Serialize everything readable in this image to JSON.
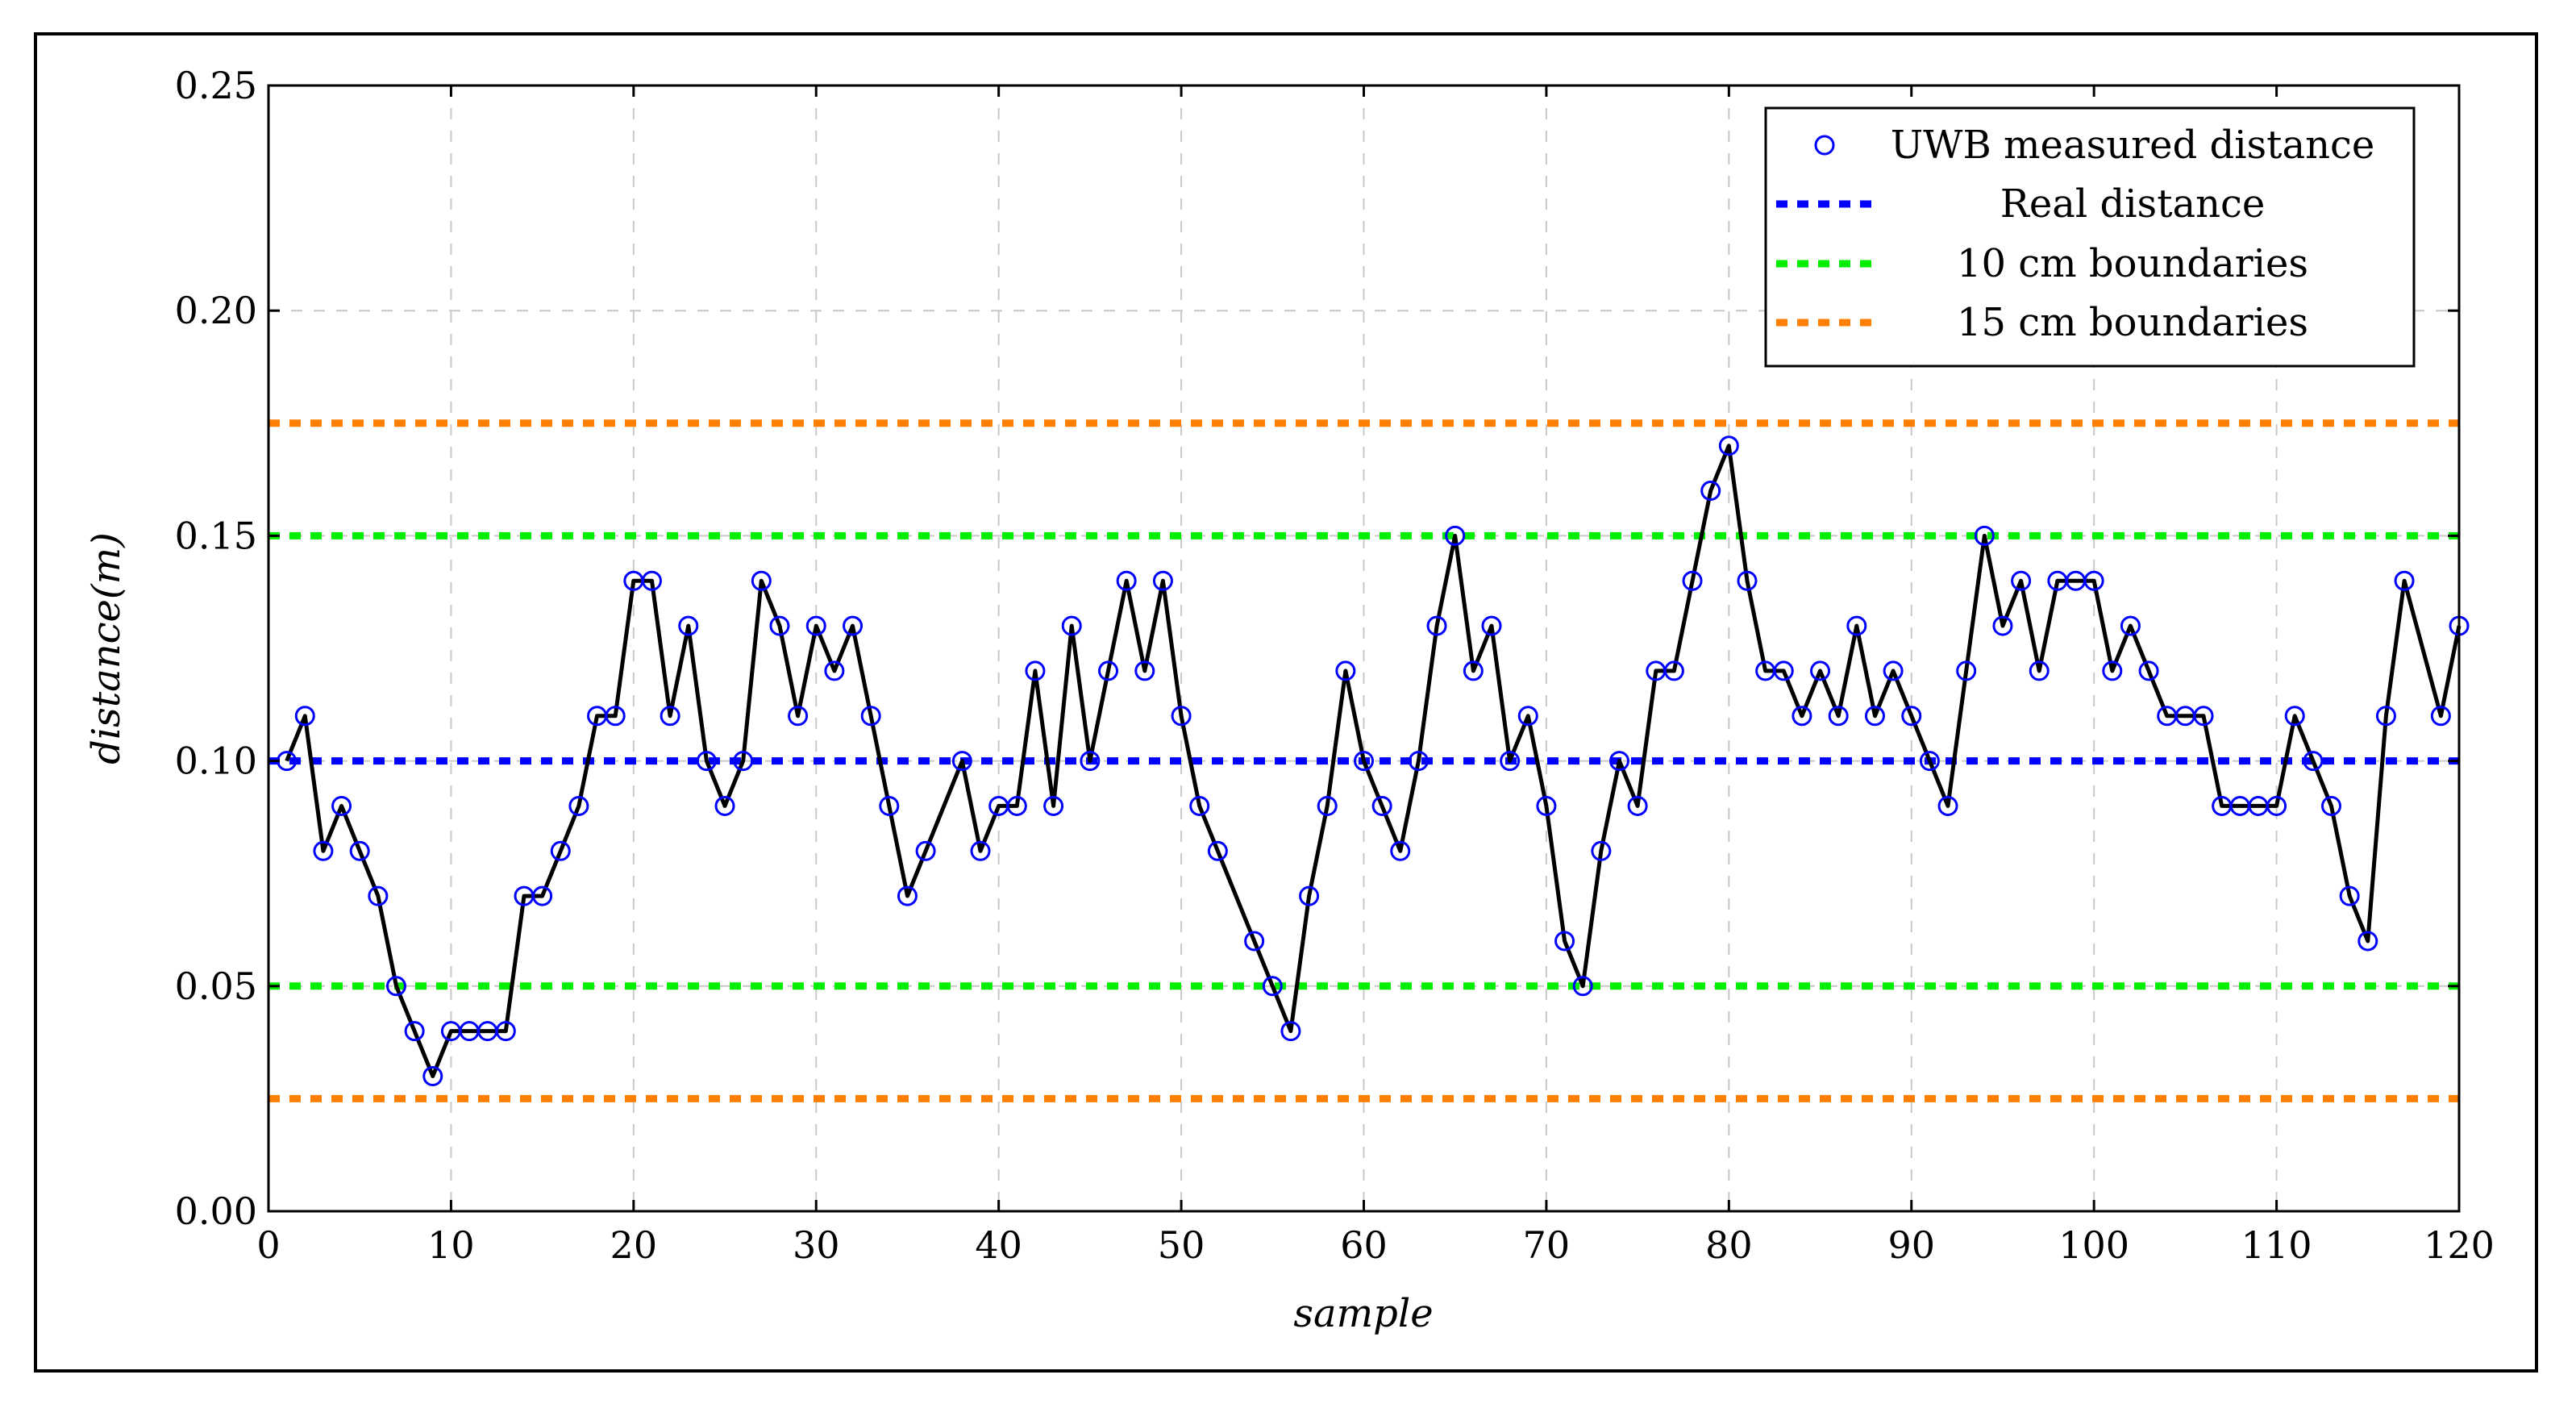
{
  "chart_data": {
    "type": "line",
    "xlabel": "sample",
    "ylabel": "distance(m)",
    "xlim": [
      0,
      120
    ],
    "ylim": [
      0,
      0.25
    ],
    "grid": true,
    "legend_position": "top-right",
    "x_ticks": [
      "0",
      "10",
      "20",
      "30",
      "40",
      "50",
      "60",
      "70",
      "80",
      "90",
      "100",
      "110",
      "120"
    ],
    "y_ticks": [
      "0.00",
      "0.05",
      "0.10",
      "0.15",
      "0.20",
      "0.25"
    ],
    "series": [
      {
        "name": "UWB measured distance",
        "color": "#0000ff",
        "line_color": "#000000",
        "marker": "circle",
        "x": [
          1,
          2,
          3,
          4,
          5,
          6,
          7,
          8,
          9,
          10,
          11,
          12,
          13,
          14,
          15,
          16,
          17,
          18,
          19,
          20,
          21,
          22,
          23,
          24,
          25,
          26,
          27,
          28,
          29,
          30,
          31,
          32,
          33,
          34,
          35,
          36,
          38,
          39,
          40,
          41,
          42,
          43,
          44,
          45,
          46,
          47,
          48,
          49,
          50,
          51,
          52,
          54,
          55,
          56,
          57,
          58,
          59,
          60,
          61,
          62,
          63,
          64,
          65,
          66,
          67,
          68,
          69,
          70,
          71,
          72,
          73,
          74,
          75,
          76,
          77,
          78,
          79,
          80,
          81,
          82,
          83,
          84,
          85,
          86,
          87,
          88,
          89,
          90,
          91,
          92,
          93,
          94,
          95,
          96,
          97,
          98,
          99,
          100,
          101,
          102,
          103,
          104,
          105,
          106,
          107,
          108,
          109,
          110,
          111,
          112,
          113,
          114,
          115,
          116,
          117,
          119,
          120
        ],
        "y": [
          0.1,
          0.11,
          0.08,
          0.09,
          0.08,
          0.07,
          0.05,
          0.04,
          0.03,
          0.04,
          0.04,
          0.04,
          0.04,
          0.07,
          0.07,
          0.08,
          0.09,
          0.11,
          0.11,
          0.14,
          0.14,
          0.11,
          0.13,
          0.1,
          0.09,
          0.1,
          0.14,
          0.13,
          0.11,
          0.13,
          0.12,
          0.13,
          0.11,
          0.09,
          0.07,
          0.08,
          0.1,
          0.08,
          0.09,
          0.09,
          0.12,
          0.09,
          0.13,
          0.1,
          0.12,
          0.14,
          0.12,
          0.14,
          0.11,
          0.09,
          0.08,
          0.06,
          0.05,
          0.04,
          0.07,
          0.09,
          0.12,
          0.1,
          0.09,
          0.08,
          0.1,
          0.13,
          0.15,
          0.12,
          0.13,
          0.1,
          0.11,
          0.09,
          0.06,
          0.05,
          0.08,
          0.1,
          0.09,
          0.12,
          0.12,
          0.14,
          0.16,
          0.17,
          0.14,
          0.12,
          0.12,
          0.11,
          0.12,
          0.11,
          0.13,
          0.11,
          0.12,
          0.11,
          0.1,
          0.09,
          0.12,
          0.15,
          0.13,
          0.14,
          0.12,
          0.14,
          0.14,
          0.14,
          0.12,
          0.13,
          0.12,
          0.11,
          0.11,
          0.11,
          0.09,
          0.09,
          0.09,
          0.09,
          0.11,
          0.1,
          0.09,
          0.07,
          0.06,
          0.11,
          0.14,
          0.11,
          0.13
        ]
      },
      {
        "name": "Real distance",
        "color": "#0000ff",
        "style": "dashed",
        "y": 0.1
      },
      {
        "name": "10 cm boundaries",
        "color": "#00ee00",
        "style": "dashed",
        "y": [
          0.05,
          0.15
        ]
      },
      {
        "name": "15 cm boundaries",
        "color": "#ff8000",
        "style": "dashed",
        "y": [
          0.025,
          0.175
        ]
      }
    ]
  }
}
